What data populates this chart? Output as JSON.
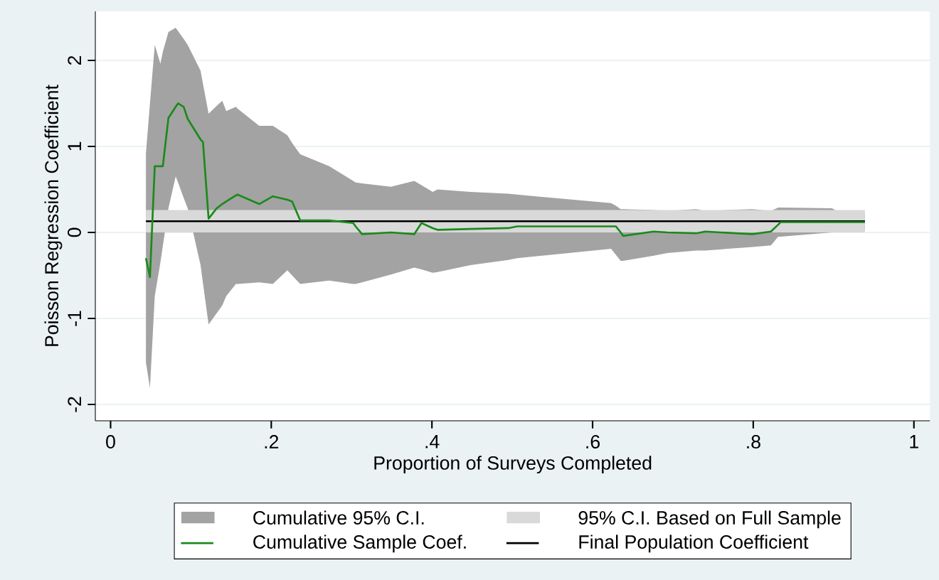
{
  "chart_data": {
    "type": "line",
    "xlabel": "Proportion of Surveys Completed",
    "ylabel": "Poisson Regression Coefficient",
    "xlim": [
      -0.019,
      1.02
    ],
    "ylim": [
      -2.19,
      2.57
    ],
    "xticks": [
      0,
      {
        "value": 0.2,
        "label": ".2"
      },
      {
        "value": 0.4,
        "label": ".4"
      },
      {
        "value": 0.6,
        "label": ".6"
      },
      {
        "value": 0.8,
        "label": ".8"
      },
      1
    ],
    "yticks": [
      -2,
      -1,
      0,
      1,
      2
    ],
    "grid": "y",
    "legend": "bottom",
    "annotations": [
      "Cumulative 95% C.I.",
      "95% C.I. Based on Full Sample"
    ],
    "series": [
      {
        "name": "Cumulative Sample Coef.",
        "color": "#1a8a1a",
        "x": [
          0.044,
          0.049,
          0.055,
          0.062,
          0.065,
          0.072,
          0.081,
          0.084,
          0.091,
          0.096,
          0.112,
          0.115,
          0.122,
          0.132,
          0.139,
          0.144,
          0.156,
          0.158,
          0.185,
          0.202,
          0.22,
          0.226,
          0.236,
          0.272,
          0.302,
          0.305,
          0.313,
          0.349,
          0.378,
          0.387,
          0.401,
          0.407,
          0.448,
          0.495,
          0.506,
          0.623,
          0.629,
          0.635,
          0.638,
          0.676,
          0.693,
          0.729,
          0.74,
          0.799,
          0.822,
          0.831,
          0.834,
          0.898,
          0.904,
          0.939
        ],
        "values": [
          -0.3,
          -0.52,
          0.77,
          0.77,
          0.77,
          1.33,
          1.46,
          1.5,
          1.46,
          1.32,
          1.08,
          1.05,
          0.16,
          0.28,
          0.33,
          0.36,
          0.43,
          0.44,
          0.33,
          0.42,
          0.38,
          0.36,
          0.14,
          0.14,
          0.11,
          0.07,
          -0.02,
          0.0,
          -0.02,
          0.11,
          0.05,
          0.03,
          0.04,
          0.05,
          0.07,
          0.07,
          0.07,
          0.0,
          -0.04,
          0.01,
          0.0,
          -0.01,
          0.01,
          -0.02,
          0.01,
          0.09,
          0.12,
          0.12,
          0.12,
          0.12
        ],
        "upper": [
          0.92,
          1.5,
          2.18,
          1.96,
          2.1,
          2.33,
          2.38,
          2.34,
          2.25,
          2.18,
          1.88,
          1.73,
          1.38,
          1.47,
          1.53,
          1.41,
          1.46,
          1.44,
          1.24,
          1.24,
          1.13,
          1.04,
          0.91,
          0.77,
          0.6,
          0.58,
          0.57,
          0.53,
          0.6,
          0.55,
          0.47,
          0.5,
          0.47,
          0.45,
          0.44,
          0.34,
          0.31,
          0.27,
          0.27,
          0.26,
          0.25,
          0.27,
          0.25,
          0.27,
          0.25,
          0.29,
          0.29,
          0.28,
          0.25,
          0.22
        ],
        "lower": [
          -1.51,
          -1.81,
          -0.74,
          -0.35,
          -0.16,
          0.28,
          0.65,
          0.58,
          0.4,
          0.28,
          -0.38,
          -0.59,
          -1.07,
          -0.94,
          -0.85,
          -0.74,
          -0.6,
          -0.6,
          -0.58,
          -0.6,
          -0.44,
          -0.5,
          -0.6,
          -0.56,
          -0.6,
          -0.6,
          -0.58,
          -0.49,
          -0.41,
          -0.43,
          -0.47,
          -0.46,
          -0.38,
          -0.32,
          -0.3,
          -0.19,
          -0.26,
          -0.33,
          -0.33,
          -0.27,
          -0.24,
          -0.21,
          -0.21,
          -0.17,
          -0.15,
          -0.05,
          -0.05,
          0.0,
          0.0,
          0.02
        ]
      },
      {
        "name": "Final Population Coefficient",
        "color": "#000000",
        "x": [
          0.044,
          0.939
        ],
        "values": [
          0.13,
          0.13
        ],
        "upper": [
          0.26,
          0.26
        ],
        "lower": [
          0.0,
          0.0
        ]
      }
    ]
  }
}
